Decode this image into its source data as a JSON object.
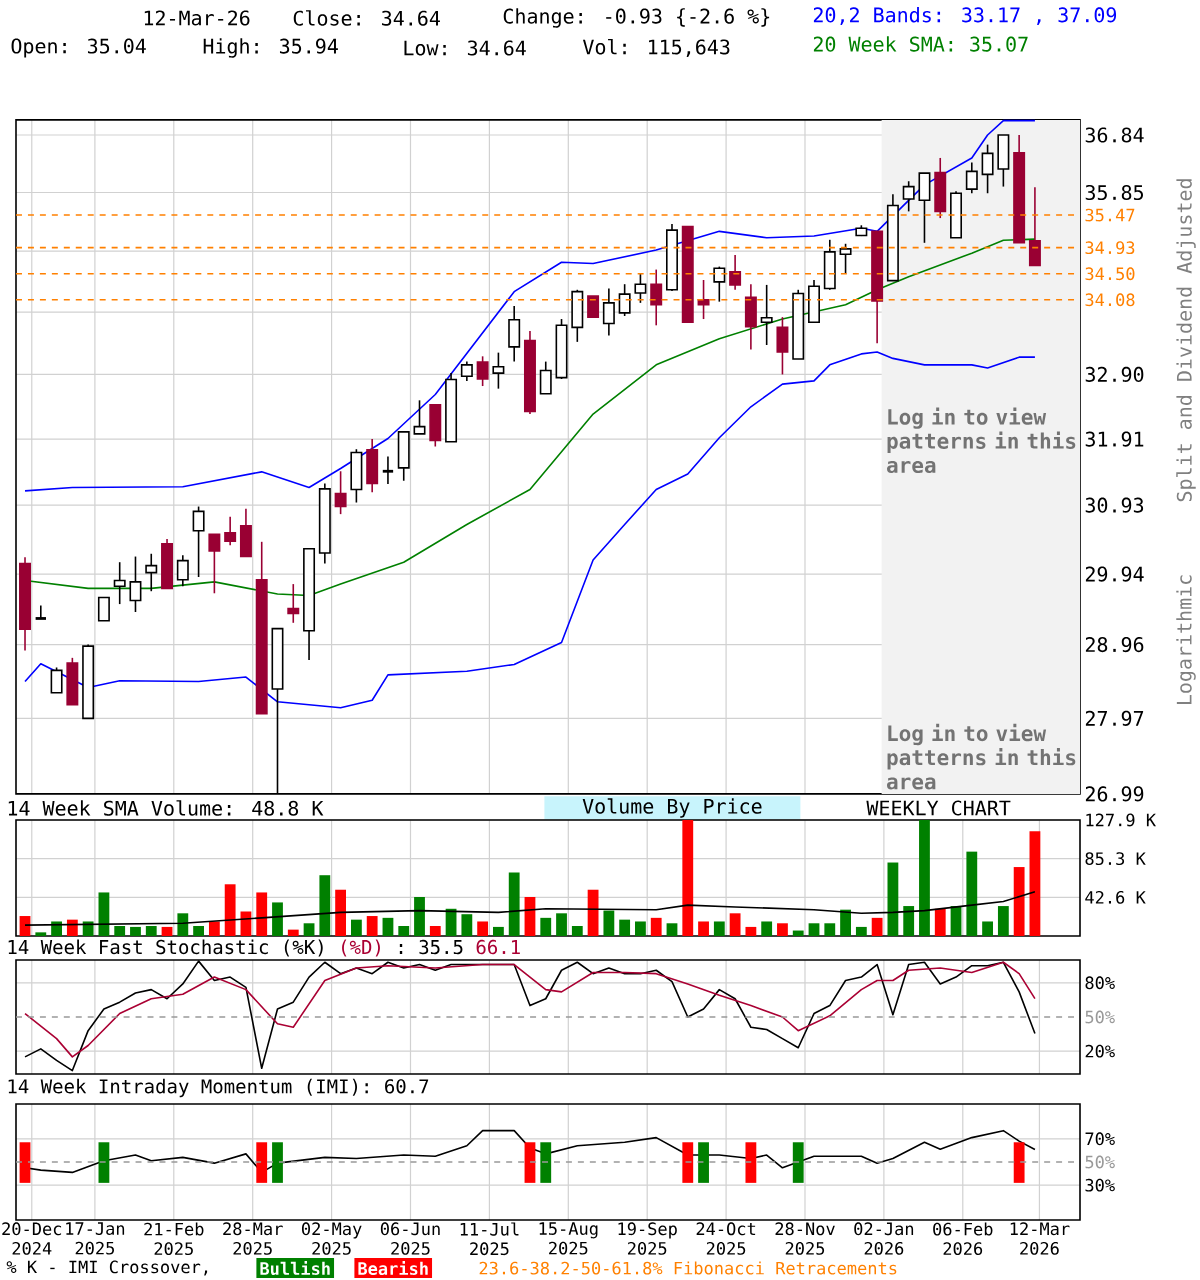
{
  "chart_data": [
    {
      "type": "candlestick",
      "annotations": [
        "12-Mar-26",
        "Close: 34.64",
        "Change: -0.93 {-2.6 %}",
        "Open: 35.04",
        "High: 35.94",
        "Low: 34.64",
        "Vol: 115,643",
        "20,2 Bands: 33.17 , 37.09",
        "20 Week SMA: 35.07",
        "Logarithmic",
        "Log in to view patterns in this area"
      ],
      "ylabel": "Split and Dividend Adjusted",
      "x": [
        "2024-12-17",
        "2024-12-24",
        "2024-12-31",
        "2025-01-07",
        "2025-01-14",
        "2025-01-21",
        "2025-01-28",
        "2025-02-04",
        "2025-02-11",
        "2025-02-18",
        "2025-02-25",
        "2025-03-04",
        "2025-03-11",
        "2025-03-18",
        "2025-03-25",
        "2025-04-01",
        "2025-04-08",
        "2025-04-15",
        "2025-04-22",
        "2025-04-29",
        "2025-05-06",
        "2025-05-13",
        "2025-05-20",
        "2025-05-27",
        "2025-06-03",
        "2025-06-10",
        "2025-06-17",
        "2025-06-24",
        "2025-07-01",
        "2025-07-08",
        "2025-07-15",
        "2025-07-22",
        "2025-07-29",
        "2025-08-05",
        "2025-08-12",
        "2025-08-19",
        "2025-08-26",
        "2025-09-02",
        "2025-09-09",
        "2025-09-16",
        "2025-09-23",
        "2025-09-30",
        "2025-10-07",
        "2025-10-14",
        "2025-10-21",
        "2025-10-28",
        "2025-11-04",
        "2025-11-11",
        "2025-11-18",
        "2025-11-25",
        "2025-12-02",
        "2025-12-09",
        "2025-12-16",
        "2025-12-23",
        "2025-12-30",
        "2026-01-06",
        "2026-01-13",
        "2026-01-20",
        "2026-01-27",
        "2026-02-03",
        "2026-02-10",
        "2026-02-17",
        "2026-02-24",
        "2026-03-03",
        "2026-03-10"
      ],
      "ohlc": [
        [
          30.09,
          30.18,
          28.88,
          29.17
        ],
        [
          29.32,
          29.5,
          29.32,
          29.32
        ],
        [
          28.31,
          28.65,
          28.31,
          28.61
        ],
        [
          28.71,
          28.78,
          28.15,
          28.15
        ],
        [
          27.97,
          28.96,
          27.97,
          28.94
        ],
        [
          29.29,
          29.61,
          29.29,
          29.61
        ],
        [
          29.77,
          30.11,
          29.52,
          29.85
        ],
        [
          29.57,
          30.19,
          29.41,
          29.83
        ],
        [
          29.96,
          30.23,
          29.7,
          30.06
        ],
        [
          30.37,
          30.44,
          29.74,
          29.74
        ],
        [
          29.86,
          30.21,
          29.77,
          30.13
        ],
        [
          30.56,
          30.91,
          29.9,
          30.84
        ],
        [
          30.51,
          30.51,
          29.67,
          30.27
        ],
        [
          30.53,
          30.76,
          30.35,
          30.41
        ],
        [
          30.63,
          30.88,
          30.19,
          30.19
        ],
        [
          29.86,
          30.4,
          28.03,
          28.03
        ],
        [
          28.36,
          29.18,
          26.99,
          29.18
        ],
        [
          29.46,
          29.8,
          29.26,
          29.39
        ],
        [
          29.15,
          30.3,
          28.75,
          30.3
        ],
        [
          30.24,
          31.25,
          30.09,
          31.17
        ],
        [
          31.1,
          31.43,
          30.8,
          30.91
        ],
        [
          31.16,
          31.76,
          30.97,
          31.71
        ],
        [
          31.75,
          31.91,
          31.12,
          31.25
        ],
        [
          31.43,
          31.65,
          31.24,
          31.43
        ],
        [
          31.48,
          32.02,
          31.29,
          32.02
        ],
        [
          31.99,
          32.5,
          31.99,
          32.1
        ],
        [
          32.43,
          32.43,
          31.8,
          31.89
        ],
        [
          31.87,
          32.92,
          31.87,
          32.82
        ],
        [
          32.87,
          33.1,
          32.8,
          33.05
        ],
        [
          33.09,
          33.18,
          32.72,
          32.83
        ],
        [
          32.92,
          33.24,
          32.68,
          33.02
        ],
        [
          33.33,
          33.98,
          33.1,
          33.76
        ],
        [
          33.43,
          33.58,
          32.29,
          32.33
        ],
        [
          32.6,
          33.1,
          32.6,
          32.96
        ],
        [
          32.85,
          33.77,
          32.83,
          33.67
        ],
        [
          33.64,
          34.24,
          33.41,
          34.21
        ],
        [
          34.14,
          34.14,
          33.8,
          33.8
        ],
        [
          33.7,
          34.26,
          33.51,
          34.03
        ],
        [
          33.87,
          34.33,
          33.82,
          34.17
        ],
        [
          34.19,
          34.51,
          34.03,
          34.33
        ],
        [
          34.33,
          34.57,
          33.67,
          34.0
        ],
        [
          34.24,
          35.32,
          34.22,
          35.22
        ],
        [
          35.28,
          35.28,
          33.72,
          33.72
        ],
        [
          34.08,
          34.4,
          33.77,
          34.0
        ],
        [
          34.37,
          34.62,
          34.05,
          34.59
        ],
        [
          34.53,
          34.81,
          34.24,
          34.32
        ],
        [
          34.12,
          34.33,
          33.29,
          33.65
        ],
        [
          33.72,
          34.32,
          33.36,
          33.79
        ],
        [
          33.64,
          33.8,
          32.9,
          33.25
        ],
        [
          33.14,
          34.24,
          33.14,
          34.18
        ],
        [
          33.72,
          34.4,
          33.72,
          34.3
        ],
        [
          34.26,
          35.06,
          34.24,
          34.86
        ],
        [
          34.82,
          34.99,
          34.51,
          34.91
        ],
        [
          35.13,
          35.3,
          35.12,
          35.25
        ],
        [
          35.2,
          35.2,
          33.39,
          34.06
        ],
        [
          34.39,
          35.82,
          34.39,
          35.63
        ],
        [
          35.74,
          36.04,
          35.53,
          35.95
        ],
        [
          35.72,
          36.18,
          35.01,
          36.18
        ],
        [
          36.19,
          36.44,
          35.42,
          35.53
        ],
        [
          35.09,
          35.87,
          35.09,
          35.84
        ],
        [
          35.91,
          36.36,
          35.84,
          36.21
        ],
        [
          36.16,
          36.67,
          35.84,
          36.52
        ],
        [
          36.25,
          36.84,
          35.95,
          36.84
        ],
        [
          36.53,
          36.84,
          35.01,
          35.01
        ],
        [
          35.04,
          35.94,
          34.64,
          34.64
        ]
      ],
      "series": [
        {
          "type": "line",
          "color": "#008000",
          "x": [
            "2024-12-17",
            "2025-01-14",
            "2025-02-11",
            "2025-03-11",
            "2025-04-08",
            "2025-04-22",
            "2025-05-06",
            "2025-06-03",
            "2025-07-01",
            "2025-07-29",
            "2025-08-26",
            "2025-09-23",
            "2025-10-21",
            "2025-11-18",
            "2025-12-16",
            "2025-12-30",
            "2026-01-13",
            "2026-02-10",
            "2026-02-24",
            "2026-03-10"
          ],
          "values": [
            29.85,
            29.74,
            29.74,
            29.83,
            29.66,
            29.64,
            29.8,
            30.11,
            30.65,
            31.16,
            32.29,
            33.05,
            33.46,
            33.77,
            34.0,
            34.24,
            34.45,
            34.84,
            35.05,
            35.07
          ]
        },
        {
          "type": "line",
          "color": "#0000ff",
          "x": [
            "2024-12-17",
            "2025-01-07",
            "2025-02-25",
            "2025-04-01",
            "2025-04-22",
            "2025-05-06",
            "2025-05-27",
            "2025-06-17",
            "2025-07-22",
            "2025-08-12",
            "2025-08-26",
            "2025-09-23",
            "2025-10-21",
            "2025-11-11",
            "2025-12-02",
            "2025-12-23",
            "2025-12-30",
            "2026-01-20",
            "2026-02-10",
            "2026-02-17",
            "2026-02-24",
            "2026-03-03",
            "2026-03-10"
          ],
          "values": [
            31.14,
            31.19,
            31.2,
            31.42,
            31.19,
            31.47,
            31.92,
            32.59,
            34.21,
            34.69,
            34.67,
            34.89,
            35.2,
            35.09,
            35.12,
            35.25,
            35.2,
            35.98,
            36.44,
            36.84,
            37.09,
            37.09,
            37.09
          ]
        },
        {
          "type": "line",
          "color": "#0000ff",
          "x": [
            "2024-12-17",
            "2024-12-24",
            "2025-01-14",
            "2025-01-28",
            "2025-03-04",
            "2025-03-25",
            "2025-04-08",
            "2025-05-06",
            "2025-05-20",
            "2025-05-27",
            "2025-07-01",
            "2025-07-22",
            "2025-08-12",
            "2025-08-26",
            "2025-09-09",
            "2025-09-23",
            "2025-10-07",
            "2025-10-21",
            "2025-11-04",
            "2025-11-18",
            "2025-12-02",
            "2025-12-09",
            "2025-12-23",
            "2025-12-30",
            "2026-01-06",
            "2026-01-20",
            "2026-02-10",
            "2026-02-17",
            "2026-03-03",
            "2026-03-10"
          ],
          "values": [
            28.46,
            28.7,
            28.38,
            28.47,
            28.46,
            28.52,
            28.19,
            28.11,
            28.21,
            28.55,
            28.6,
            28.69,
            28.99,
            30.14,
            30.65,
            31.16,
            31.39,
            31.93,
            32.4,
            32.75,
            32.8,
            33.05,
            33.22,
            33.25,
            33.15,
            33.05,
            33.05,
            33.0,
            33.17,
            33.17
          ]
        }
      ],
      "ref_lines": [
        {
          "axis": "y",
          "value": 35.47,
          "label": "35.47",
          "color": "#ff8000",
          "line_style": "dashed"
        },
        {
          "axis": "y",
          "value": 34.93,
          "label": "34.93",
          "color": "#ff8000",
          "line_style": "dashed"
        },
        {
          "axis": "y",
          "value": 34.5,
          "label": "34.50",
          "color": "#ff8000",
          "line_style": "dashed"
        },
        {
          "axis": "y",
          "value": 34.08,
          "label": "34.08",
          "color": "#ff8000",
          "line_style": "dashed"
        }
      ],
      "bands": [
        {
          "axis": "x",
          "from": "2026-01-01",
          "to": "2026-03-30",
          "label": "Log in to view patterns in this area",
          "color": "#f2f2f2"
        }
      ],
      "xlim": [
        "2024-12-13",
        "2026-03-30"
      ],
      "ylim": [
        26.99,
        37.1
      ],
      "log": "y",
      "xticks": [
        {
          "value": "2024-12-20",
          "label": null
        },
        {
          "value": "2025-01-17",
          "label": null
        },
        {
          "value": "2025-02-21",
          "label": null
        },
        {
          "value": "2025-03-28",
          "label": null
        },
        {
          "value": "2025-05-02",
          "label": null
        },
        {
          "value": "2025-06-06",
          "label": null
        },
        {
          "value": "2025-07-11",
          "label": null
        },
        {
          "value": "2025-08-15",
          "label": null
        },
        {
          "value": "2025-09-19",
          "label": null
        },
        {
          "value": "2025-10-24",
          "label": null
        },
        {
          "value": "2025-11-28",
          "label": null
        },
        {
          "value": "2026-01-02",
          "label": null
        },
        {
          "value": "2026-02-06",
          "label": null
        },
        {
          "value": "2026-03-12",
          "label": null
        }
      ],
      "yticks": [
        {
          "value": 26.99,
          "label": "26.99"
        },
        {
          "value": 27.97,
          "label": "27.97"
        },
        {
          "value": 28.96,
          "label": "28.96"
        },
        {
          "value": 29.94,
          "label": "29.94"
        },
        {
          "value": 30.93,
          "label": "30.93"
        },
        {
          "value": 31.91,
          "label": "31.91"
        },
        {
          "value": 32.9,
          "label": "32.90"
        },
        {
          "value": 33.88,
          "label": null
        },
        {
          "value": 34.87,
          "label": null
        },
        {
          "value": 35.85,
          "label": "35.85"
        },
        {
          "value": 36.84,
          "label": "36.84"
        }
      ],
      "tick_labels": "y",
      "grid": true
    },
    {
      "type": "bar",
      "title": "14 Week SMA Volume: 48.8 K",
      "annotations": [
        "Volume By Price",
        "WEEKLY CHART"
      ],
      "x": [
        "2024-12-17",
        "2024-12-24",
        "2024-12-31",
        "2025-01-07",
        "2025-01-14",
        "2025-01-21",
        "2025-01-28",
        "2025-02-04",
        "2025-02-11",
        "2025-02-18",
        "2025-02-25",
        "2025-03-04",
        "2025-03-11",
        "2025-03-18",
        "2025-03-25",
        "2025-04-01",
        "2025-04-08",
        "2025-04-15",
        "2025-04-22",
        "2025-04-29",
        "2025-05-06",
        "2025-05-13",
        "2025-05-20",
        "2025-05-27",
        "2025-06-03",
        "2025-06-10",
        "2025-06-17",
        "2025-06-24",
        "2025-07-01",
        "2025-07-08",
        "2025-07-15",
        "2025-07-22",
        "2025-07-29",
        "2025-08-05",
        "2025-08-12",
        "2025-08-19",
        "2025-08-26",
        "2025-09-02",
        "2025-09-09",
        "2025-09-16",
        "2025-09-23",
        "2025-09-30",
        "2025-10-07",
        "2025-10-14",
        "2025-10-21",
        "2025-10-28",
        "2025-11-04",
        "2025-11-11",
        "2025-11-18",
        "2025-11-25",
        "2025-12-02",
        "2025-12-09",
        "2025-12-16",
        "2025-12-23",
        "2025-12-30",
        "2026-01-06",
        "2026-01-13",
        "2026-01-20",
        "2026-01-27",
        "2026-02-03",
        "2026-02-10",
        "2026-02-17",
        "2026-02-24",
        "2026-03-03",
        "2026-03-10"
      ],
      "series": [
        {
          "type": "bar",
          "values": [
            22,
            4,
            16,
            18,
            16,
            48,
            11,
            10,
            11,
            10,
            25,
            11,
            16,
            57,
            27,
            48,
            37,
            7,
            14,
            67,
            51,
            18,
            22,
            20,
            11,
            43,
            11,
            30,
            24,
            16,
            10,
            70,
            43,
            20,
            25,
            11,
            51,
            28,
            18,
            16,
            20,
            14,
            127.9,
            16,
            16,
            25,
            10,
            16,
            14,
            6,
            14,
            14,
            29,
            10,
            20,
            81,
            33,
            127.9,
            30,
            33,
            93,
            16,
            33,
            76,
            115.6
          ],
          "colors": [
            "#ff0000",
            "#008000",
            "#008000",
            "#ff0000",
            "#008000",
            "#008000",
            "#008000",
            "#008000",
            "#008000",
            "#ff0000",
            "#008000",
            "#008000",
            "#ff0000",
            "#ff0000",
            "#ff0000",
            "#ff0000",
            "#008000",
            "#ff0000",
            "#008000",
            "#008000",
            "#ff0000",
            "#008000",
            "#ff0000",
            "#008000",
            "#008000",
            "#008000",
            "#ff0000",
            "#008000",
            "#008000",
            "#ff0000",
            "#008000",
            "#008000",
            "#ff0000",
            "#008000",
            "#008000",
            "#008000",
            "#ff0000",
            "#008000",
            "#008000",
            "#008000",
            "#ff0000",
            "#008000",
            "#ff0000",
            "#ff0000",
            "#008000",
            "#ff0000",
            "#ff0000",
            "#008000",
            "#ff0000",
            "#008000",
            "#008000",
            "#008000",
            "#008000",
            "#008000",
            "#ff0000",
            "#008000",
            "#008000",
            "#008000",
            "#ff0000",
            "#008000",
            "#008000",
            "#008000",
            "#008000",
            "#ff0000",
            "#ff0000"
          ]
        },
        {
          "type": "line",
          "color": "#000000",
          "x": [
            "2024-12-17",
            "2025-02-25",
            "2025-04-01",
            "2025-05-06",
            "2025-06-10",
            "2025-07-15",
            "2025-08-05",
            "2025-09-23",
            "2025-10-07",
            "2025-10-28",
            "2025-12-02",
            "2025-12-23",
            "2026-01-06",
            "2026-01-20",
            "2026-02-10",
            "2026-02-24",
            "2026-03-10"
          ],
          "values": [
            12,
            14,
            20,
            26,
            28,
            26,
            30,
            29,
            34,
            32,
            29,
            25,
            26,
            28,
            34,
            38,
            48.8
          ]
        }
      ],
      "xlim": [
        "2024-12-13",
        "2026-03-30"
      ],
      "ylim": [
        0,
        127.9
      ],
      "xticks": [
        {
          "value": "2024-12-20",
          "label": null
        },
        {
          "value": "2025-01-17",
          "label": null
        },
        {
          "value": "2025-02-21",
          "label": null
        },
        {
          "value": "2025-03-28",
          "label": null
        },
        {
          "value": "2025-05-02",
          "label": null
        },
        {
          "value": "2025-06-06",
          "label": null
        },
        {
          "value": "2025-07-11",
          "label": null
        },
        {
          "value": "2025-08-15",
          "label": null
        },
        {
          "value": "2025-09-19",
          "label": null
        },
        {
          "value": "2025-10-24",
          "label": null
        },
        {
          "value": "2025-11-28",
          "label": null
        },
        {
          "value": "2026-01-02",
          "label": null
        },
        {
          "value": "2026-02-06",
          "label": null
        },
        {
          "value": "2026-03-12",
          "label": null
        }
      ],
      "yticks": [
        {
          "value": 42.6,
          "label": "42.6 K"
        },
        {
          "value": 85.3,
          "label": "85.3 K"
        },
        {
          "value": 127.9,
          "label": "127.9 K"
        }
      ],
      "tick_labels": "y",
      "grid": true
    },
    {
      "type": "line",
      "title": "14 Week Fast Stochastic (%K)",
      "annotations": [
        "(%D)",
        ": 35.5",
        "66.1"
      ],
      "x": [
        "2024-12-17",
        "2024-12-24",
        "2024-12-31",
        "2025-01-07",
        "2025-01-14",
        "2025-01-21",
        "2025-01-28",
        "2025-02-04",
        "2025-02-11",
        "2025-02-18",
        "2025-02-25",
        "2025-03-04",
        "2025-03-11",
        "2025-03-18",
        "2025-03-25",
        "2025-04-01",
        "2025-04-08",
        "2025-04-15",
        "2025-04-22",
        "2025-04-29",
        "2025-05-06",
        "2025-05-13",
        "2025-05-20",
        "2025-05-27",
        "2025-06-03",
        "2025-06-10",
        "2025-06-17",
        "2025-06-24",
        "2025-07-01",
        "2025-07-08",
        "2025-07-15",
        "2025-07-22",
        "2025-07-29",
        "2025-08-05",
        "2025-08-12",
        "2025-08-19",
        "2025-08-26",
        "2025-09-02",
        "2025-09-09",
        "2025-09-16",
        "2025-09-23",
        "2025-09-30",
        "2025-10-07",
        "2025-10-14",
        "2025-10-21",
        "2025-10-28",
        "2025-11-04",
        "2025-11-11",
        "2025-11-18",
        "2025-11-25",
        "2025-12-02",
        "2025-12-09",
        "2025-12-16",
        "2025-12-23",
        "2025-12-30",
        "2026-01-06",
        "2026-01-13",
        "2026-01-20",
        "2026-01-27",
        "2026-02-03",
        "2026-02-10",
        "2026-02-17",
        "2026-02-24",
        "2026-03-03",
        "2026-03-10"
      ],
      "series": [
        {
          "color": "#000000",
          "values": [
            15,
            22,
            12,
            3,
            38,
            57,
            63,
            71,
            74,
            66,
            79,
            99,
            82,
            85,
            76,
            5,
            57,
            63,
            85,
            98,
            88,
            93,
            88,
            98,
            93,
            96,
            91,
            96,
            96,
            96,
            96,
            96,
            60,
            66,
            91,
            98,
            88,
            93,
            88,
            88,
            91,
            81,
            50,
            57,
            74,
            66,
            41,
            39,
            31,
            23,
            53,
            60,
            82,
            85,
            96,
            52,
            96,
            98,
            79,
            85,
            95,
            95,
            98,
            72,
            35.5
          ]
        },
        {
          "color": "#aa0033",
          "x": [
            "2024-12-17",
            "2024-12-31",
            "2025-01-07",
            "2025-01-14",
            "2025-01-28",
            "2025-02-11",
            "2025-02-25",
            "2025-03-11",
            "2025-03-25",
            "2025-04-08",
            "2025-04-15",
            "2025-04-29",
            "2025-05-13",
            "2025-05-27",
            "2025-06-17",
            "2025-07-08",
            "2025-07-22",
            "2025-08-05",
            "2025-08-12",
            "2025-08-26",
            "2025-09-09",
            "2025-09-23",
            "2025-10-07",
            "2025-10-21",
            "2025-11-04",
            "2025-11-18",
            "2025-11-25",
            "2025-12-09",
            "2025-12-23",
            "2025-12-30",
            "2026-01-06",
            "2026-01-13",
            "2026-01-27",
            "2026-02-10",
            "2026-02-24",
            "2026-03-03",
            "2026-03-10"
          ],
          "values": [
            53,
            31,
            15,
            25,
            53,
            66,
            70,
            85,
            74,
            44,
            41,
            82,
            93,
            95,
            93,
            96,
            96,
            74,
            72,
            89,
            89,
            88,
            79,
            69,
            60,
            50,
            38,
            51,
            74,
            82,
            82,
            91,
            93,
            89,
            98,
            88,
            66.1
          ]
        }
      ],
      "ref_lines": [
        {
          "axis": "y",
          "value": 50,
          "label": "50%",
          "color": "#999999",
          "line_style": "dashed"
        }
      ],
      "xlim": [
        "2024-12-13",
        "2026-03-30"
      ],
      "ylim": [
        0,
        100
      ],
      "xticks": [
        {
          "value": "2024-12-20",
          "label": null
        },
        {
          "value": "2025-01-17",
          "label": null
        },
        {
          "value": "2025-02-21",
          "label": null
        },
        {
          "value": "2025-03-28",
          "label": null
        },
        {
          "value": "2025-05-02",
          "label": null
        },
        {
          "value": "2025-06-06",
          "label": null
        },
        {
          "value": "2025-07-11",
          "label": null
        },
        {
          "value": "2025-08-15",
          "label": null
        },
        {
          "value": "2025-09-19",
          "label": null
        },
        {
          "value": "2025-10-24",
          "label": null
        },
        {
          "value": "2025-11-28",
          "label": null
        },
        {
          "value": "2026-01-02",
          "label": null
        },
        {
          "value": "2026-02-06",
          "label": null
        },
        {
          "value": "2026-03-12",
          "label": null
        }
      ],
      "yticks": [
        {
          "value": 20,
          "label": "20%"
        },
        {
          "value": 80,
          "label": "80%"
        }
      ],
      "tick_labels": "y",
      "grid": true
    },
    {
      "type": "line",
      "title": "14 Week Intraday Momentum (IMI): 60.7",
      "annotations": [
        "% K - IMI Crossover,",
        "23.6-38.2-50-61.8% Fibonacci Retracements"
      ],
      "series": [
        {
          "type": "line",
          "color": "#000000",
          "x": [
            "2024-12-17",
            "2024-12-24",
            "2025-01-07",
            "2025-01-21",
            "2025-02-04",
            "2025-02-11",
            "2025-02-25",
            "2025-03-11",
            "2025-03-25",
            "2025-04-01",
            "2025-04-08",
            "2025-04-29",
            "2025-05-13",
            "2025-06-03",
            "2025-06-17",
            "2025-07-01",
            "2025-07-08",
            "2025-07-22",
            "2025-07-29",
            "2025-08-05",
            "2025-08-19",
            "2025-09-09",
            "2025-09-23",
            "2025-10-07",
            "2025-10-21",
            "2025-11-04",
            "2025-11-11",
            "2025-11-18",
            "2025-12-02",
            "2025-12-23",
            "2025-12-30",
            "2026-01-06",
            "2026-01-20",
            "2026-01-27",
            "2026-02-10",
            "2026-02-24",
            "2026-03-03",
            "2026-03-10"
          ],
          "values": [
            45,
            43,
            41,
            51,
            56,
            51,
            54,
            49,
            57,
            41,
            49,
            54,
            53,
            56,
            55,
            64,
            77,
            77,
            62,
            57,
            64,
            67,
            71,
            56,
            56,
            53,
            56,
            45,
            55,
            55,
            49,
            53,
            67,
            61,
            71,
            77,
            68,
            60.7
          ]
        },
        {
          "type": "bar",
          "name": "Bullish",
          "color": "#008000",
          "x": [
            "2025-01-21",
            "2025-04-08",
            "2025-08-05",
            "2025-10-14",
            "2025-11-25"
          ],
          "base": [
            32,
            32,
            32,
            32,
            32
          ],
          "values": [
            35,
            35,
            35,
            35,
            35
          ]
        },
        {
          "type": "bar",
          "name": "Bearish",
          "color": "#ff0000",
          "x": [
            "2024-12-17",
            "2025-04-01",
            "2025-07-29",
            "2025-10-07",
            "2025-11-04",
            "2026-03-03"
          ],
          "base": [
            32,
            32,
            32,
            32,
            32,
            32
          ],
          "values": [
            35,
            35,
            35,
            35,
            35,
            35
          ]
        }
      ],
      "ref_lines": [
        {
          "axis": "y",
          "value": 50,
          "label": "50%",
          "color": "#999999",
          "line_style": "dashed"
        }
      ],
      "xlim": [
        "2024-12-13",
        "2026-03-30"
      ],
      "ylim": [
        0,
        100
      ],
      "xticks": [
        {
          "value": "2024-12-20",
          "label": "20-Dec 2024"
        },
        {
          "value": "2025-01-17",
          "label": "17-Jan 2025"
        },
        {
          "value": "2025-02-21",
          "label": "21-Feb 2025"
        },
        {
          "value": "2025-03-28",
          "label": "28-Mar 2025"
        },
        {
          "value": "2025-05-02",
          "label": "02-May 2025"
        },
        {
          "value": "2025-06-06",
          "label": "06-Jun 2025"
        },
        {
          "value": "2025-07-11",
          "label": "11-Jul 2025"
        },
        {
          "value": "2025-08-15",
          "label": "15-Aug 2025"
        },
        {
          "value": "2025-09-19",
          "label": "19-Sep 2025"
        },
        {
          "value": "2025-10-24",
          "label": "24-Oct 2025"
        },
        {
          "value": "2025-11-28",
          "label": "28-Nov 2025"
        },
        {
          "value": "2026-01-02",
          "label": "02-Jan 2026"
        },
        {
          "value": "2026-02-06",
          "label": "06-Feb 2026"
        },
        {
          "value": "2026-03-12",
          "label": "12-Mar 2026"
        }
      ],
      "yticks": [
        {
          "value": 30,
          "label": "30%"
        },
        {
          "value": 70,
          "label": "70%"
        }
      ],
      "legend": "bottom",
      "grid": true
    }
  ]
}
